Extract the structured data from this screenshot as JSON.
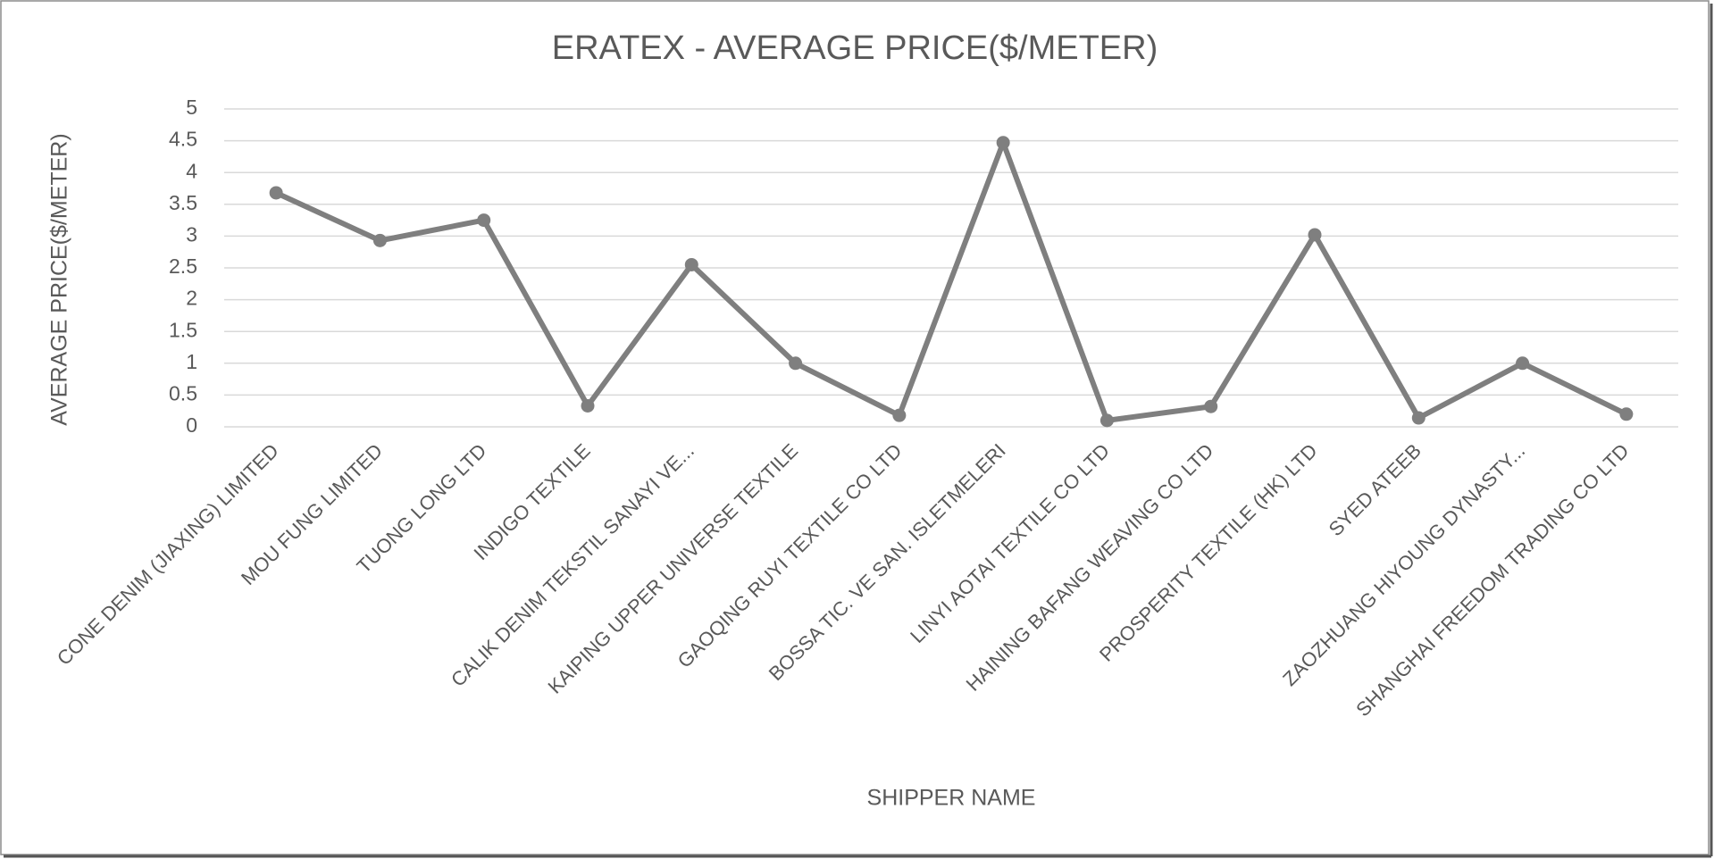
{
  "chart_data": {
    "type": "line",
    "title": "ERATEX - AVERAGE PRICE($/METER)",
    "x_label": "SHIPPER NAME",
    "y_label": "AVERAGE PRICE($/METER)",
    "categories": [
      "CONE DENIM (JIAXING) LIMITED",
      "MOU FUNG LIMITED",
      "TUONG LONG LTD",
      "INDIGO TEXTILE",
      "CALIK DENIM TEKSTIL SANAYI VE...",
      "KAIPING UPPER UNIVERSE TEXTILE",
      "GAOQING RUYI TEXTILE CO LTD",
      "BOSSA TIC. VE SAN. ISLETMELERI",
      "LINYI AOTAI TEXTILE CO LTD",
      "HAINING BAFANG WEAVING CO LTD",
      "PROSPERITY TEXTILE (HK) LTD",
      "SYED ATEEB",
      "ZAOZHUANG HIYOUNG DYNASTY...",
      "SHANGHAI FREEDOM TRADING CO LTD"
    ],
    "values": [
      3.68,
      2.93,
      3.25,
      0.33,
      2.55,
      1.0,
      0.18,
      4.47,
      0.1,
      0.32,
      3.02,
      0.14,
      1.0,
      0.2
    ],
    "color": "#7f7f7f",
    "ylim": [
      0,
      5
    ],
    "yticks": [
      0,
      0.5,
      1,
      1.5,
      2,
      2.5,
      3,
      3.5,
      4,
      4.5,
      5
    ],
    "grid": true
  }
}
